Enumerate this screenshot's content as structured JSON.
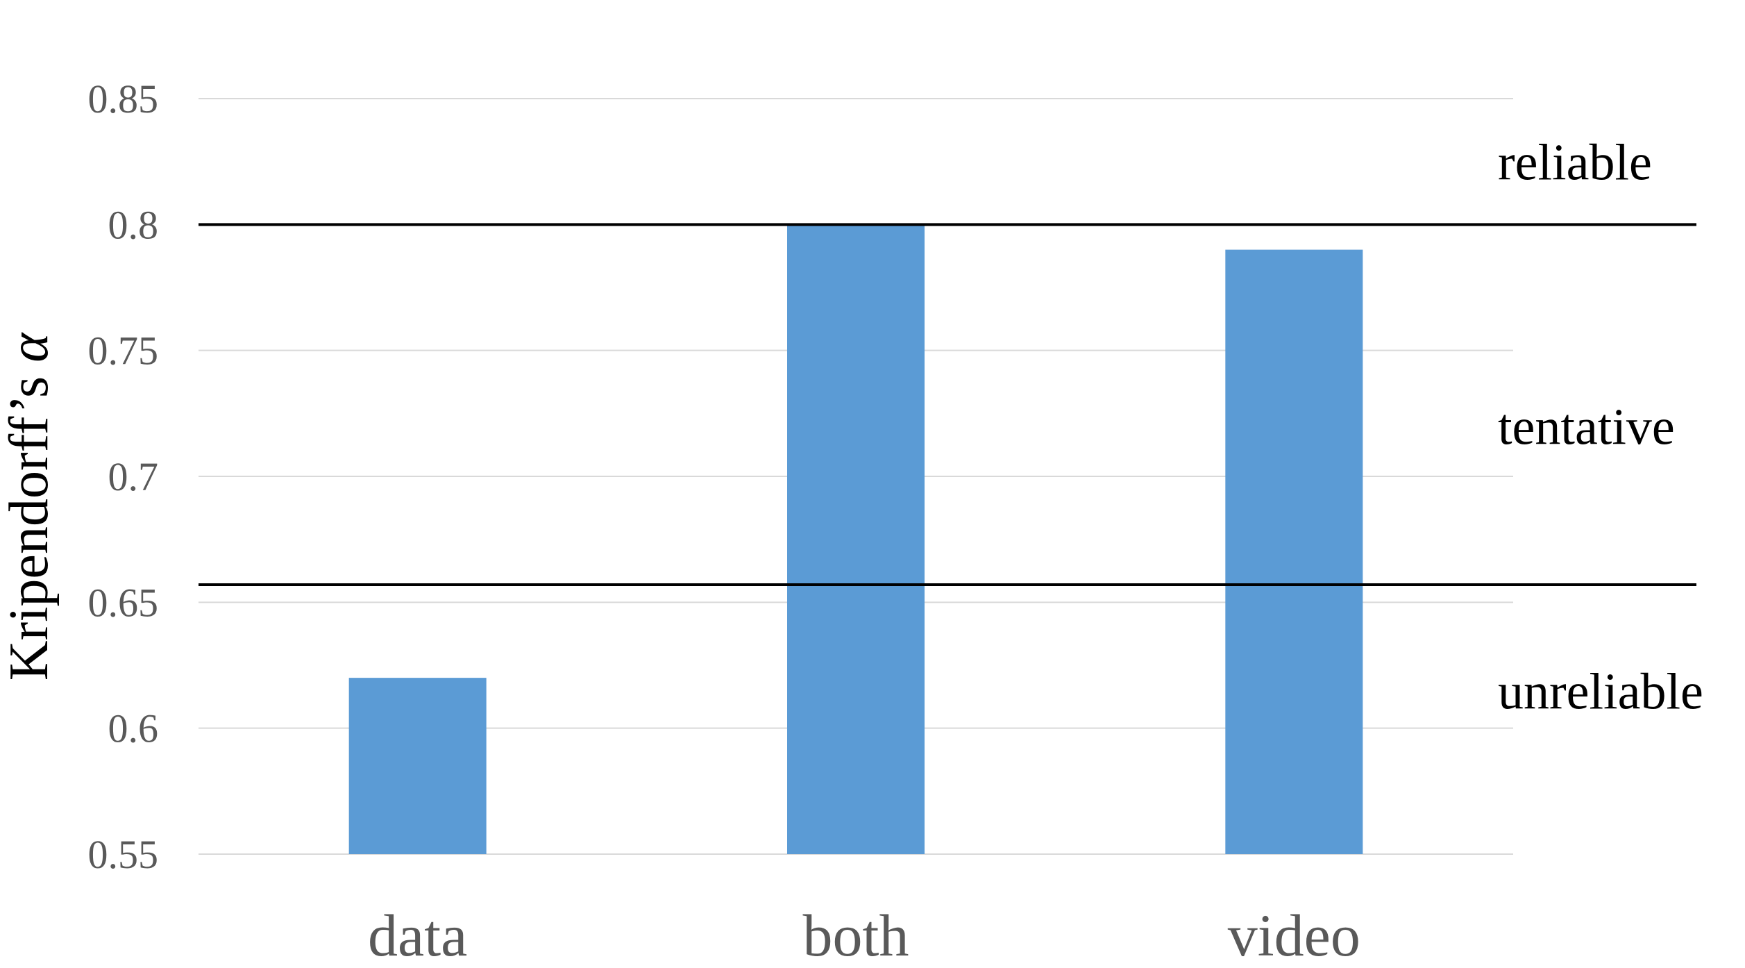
{
  "chart_data": {
    "type": "bar",
    "categories": [
      "data",
      "both",
      "video"
    ],
    "values": [
      0.62,
      0.8,
      0.79
    ],
    "ylabel_text": "Kripendorff’s ",
    "ylabel_symbol": "α",
    "ylim": [
      0.55,
      0.85
    ],
    "yticks": [
      {
        "value": 0.55,
        "label": "0.55"
      },
      {
        "value": 0.6,
        "label": "0.6"
      },
      {
        "value": 0.65,
        "label": "0.65"
      },
      {
        "value": 0.7,
        "label": "0.7"
      },
      {
        "value": 0.75,
        "label": "0.75"
      },
      {
        "value": 0.8,
        "label": "0.8"
      },
      {
        "value": 0.85,
        "label": "0.85"
      }
    ],
    "grid": true,
    "bar_color": "#5b9bd5",
    "thresholds": [
      {
        "value": 0.8
      },
      {
        "value": 0.657
      }
    ],
    "bands": [
      {
        "label": "reliable",
        "value": 0.825
      },
      {
        "label": "tentative",
        "value": 0.72
      },
      {
        "label": "unreliable",
        "value": 0.615
      }
    ]
  }
}
